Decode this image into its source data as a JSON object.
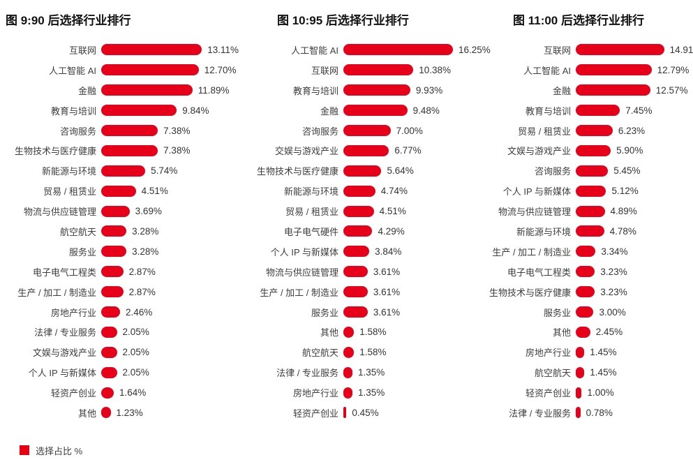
{
  "colors": {
    "bar": "#e60019",
    "legend_swatch": "#e60012",
    "title_text": "#111111",
    "label_text": "#3d3d3d",
    "value_text": "#333333"
  },
  "legend": {
    "label": "选择占比 %"
  },
  "chart_data": [
    {
      "type": "bar",
      "orientation": "horizontal",
      "title": "图 9:90 后选择行业排行",
      "value_suffix": "%",
      "grid": false,
      "legend_position": "bottom-left",
      "xlim": [
        0,
        14
      ],
      "categories": [
        "互联网",
        "人工智能 AI",
        "金融",
        "教育与培训",
        "咨询服务",
        "生物技术与医疗健康",
        "新能源与环境",
        "贸易 / 租赁业",
        "物流与供应链管理",
        "航空航天",
        "服务业",
        "电子电气工程类",
        "生产 / 加工 / 制造业",
        "房地产行业",
        "法律 / 专业服务",
        "文娱与游戏产业",
        "个人 IP 与新媒体",
        "轻资产创业",
        "其他"
      ],
      "values": [
        13.11,
        12.7,
        11.89,
        9.84,
        7.38,
        7.38,
        5.74,
        4.51,
        3.69,
        3.28,
        3.28,
        2.87,
        2.87,
        2.46,
        2.05,
        2.05,
        2.05,
        1.64,
        1.23
      ]
    },
    {
      "type": "bar",
      "orientation": "horizontal",
      "title": "图 10:95 后选择行业排行",
      "value_suffix": "%",
      "grid": false,
      "legend_position": "bottom-left",
      "xlim": [
        0,
        17
      ],
      "categories": [
        "人工智能 AI",
        "互联网",
        "教育与培训",
        "金融",
        "咨询服务",
        "交娱与游戏产业",
        "生物技术与医疗健康",
        "新能源与环境",
        "贸易 / 租赁业",
        "电子电气硬件",
        "个人 IP 与新媒体",
        "物流与供应链管理",
        "生产 / 加工 / 制造业",
        "服务业",
        "其他",
        "航空航天",
        "法律 / 专业服务",
        "房地产行业",
        "轻资产创业"
      ],
      "values": [
        16.25,
        10.38,
        9.93,
        9.48,
        7.0,
        6.77,
        5.64,
        4.74,
        4.51,
        4.29,
        3.84,
        3.61,
        3.61,
        3.61,
        1.58,
        1.58,
        1.35,
        1.35,
        0.45
      ]
    },
    {
      "type": "bar",
      "orientation": "horizontal",
      "title": "图 11:00 后选择行业排行",
      "value_suffix": "%",
      "grid": false,
      "legend_position": "bottom-left",
      "xlim": [
        0,
        16
      ],
      "categories": [
        "互联网",
        "人工智能 AI",
        "金融",
        "教育与培训",
        "贸易 / 租赁业",
        "文娱与游戏产业",
        "咨询服务",
        "个人 IP 与新媒体",
        "物流与供应链管理",
        "新能源与环境",
        "生产 / 加工 / 制造业",
        "电子电气工程类",
        "生物技术与医疗健康",
        "服务业",
        "其他",
        "房地产行业",
        "航空航天",
        "轻资产创业",
        "法律 / 专业服务"
      ],
      "values": [
        14.91,
        12.79,
        12.57,
        7.45,
        6.23,
        5.9,
        5.45,
        5.12,
        4.89,
        4.78,
        3.34,
        3.23,
        3.23,
        3.0,
        2.45,
        1.45,
        1.45,
        1.0,
        0.78
      ]
    }
  ]
}
